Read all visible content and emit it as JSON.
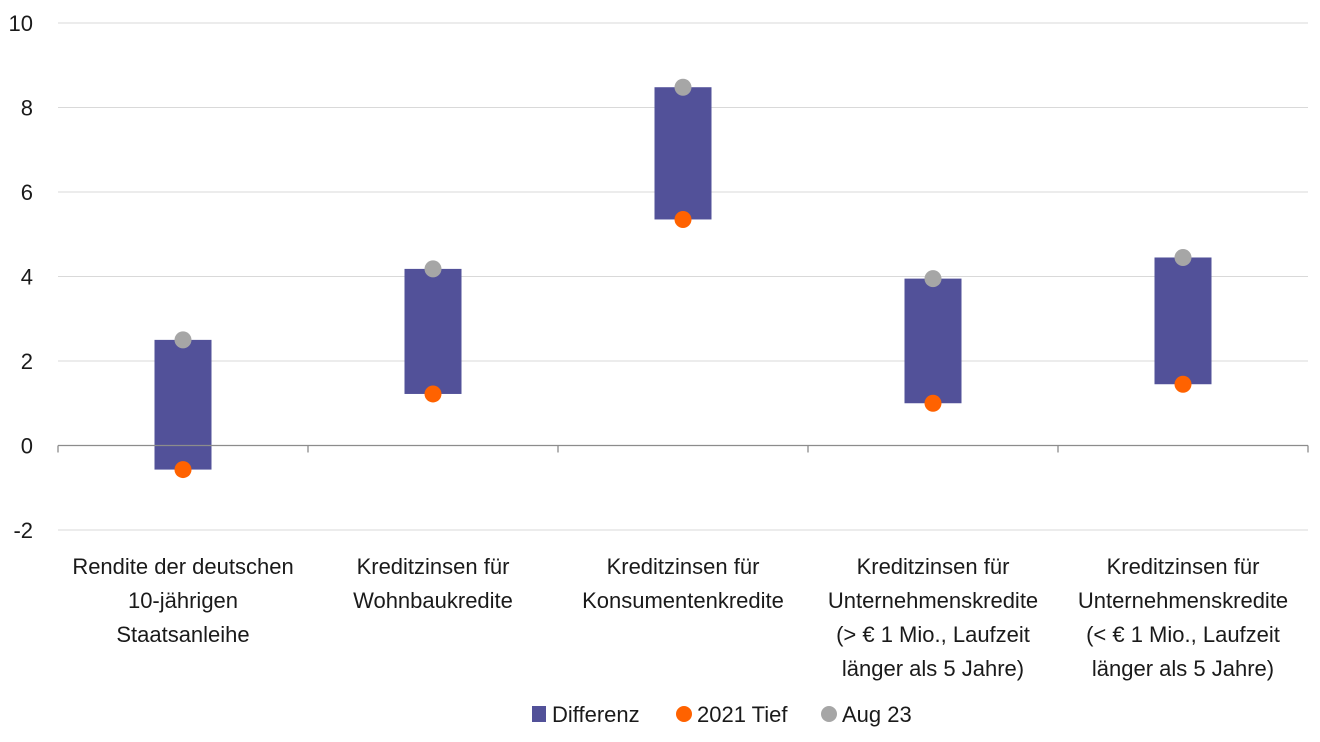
{
  "chart_data": {
    "type": "floating-bar",
    "ylim": [
      -2,
      10
    ],
    "yticks": [
      -2,
      0,
      2,
      4,
      6,
      8,
      10
    ],
    "grid": true,
    "legend_position": "bottom",
    "categories": [
      [
        "Rendite der deutschen",
        "10-jährigen",
        "Staatsanleihe"
      ],
      [
        "Kreditzinsen für",
        "Wohnbaukredite"
      ],
      [
        "Kreditzinsen für",
        "Konsumentenkredite"
      ],
      [
        "Kreditzinsen für",
        "Unternehmenskredite",
        "(> € 1 Mio., Laufzeit",
        "länger als 5 Jahre)"
      ],
      [
        "Kreditzinsen für",
        "Unternehmenskredite",
        "(< € 1 Mio., Laufzeit",
        "länger als 5 Jahre)"
      ]
    ],
    "series": [
      {
        "name": "Differenz",
        "kind": "range-bar",
        "color": "#525199"
      },
      {
        "name": "2021 Tief",
        "kind": "marker",
        "color": "#ff6200",
        "values": [
          -0.57,
          1.22,
          5.35,
          1.0,
          1.45
        ]
      },
      {
        "name": "Aug 23",
        "kind": "marker",
        "color": "#a6a6a6",
        "values": [
          2.5,
          4.18,
          8.48,
          3.95,
          4.45
        ]
      }
    ]
  }
}
